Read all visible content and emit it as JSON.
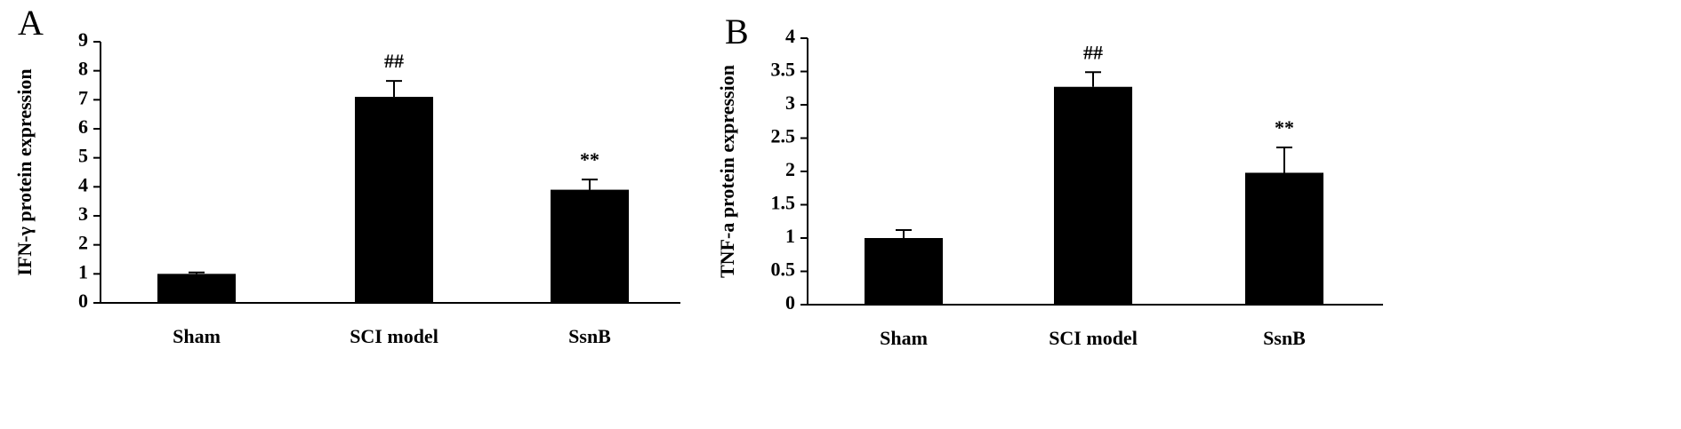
{
  "chart_data": [
    {
      "type": "bar",
      "panel": "A",
      "y_label": "IFN-γ protein expression",
      "categories": [
        "Sham",
        "SCI model",
        "SsnB"
      ],
      "values": [
        1.0,
        7.1,
        3.9
      ],
      "errors": [
        0.05,
        0.55,
        0.35
      ],
      "annotations": [
        null,
        "##",
        "**"
      ],
      "color": "#000000",
      "ylim": [
        0,
        9
      ],
      "yticks": [
        0,
        1,
        2,
        3,
        4,
        5,
        6,
        7,
        8,
        9
      ]
    },
    {
      "type": "bar",
      "panel": "B",
      "y_label": "TNF-a protein expression",
      "categories": [
        "Sham",
        "SCI model",
        "SsnB"
      ],
      "values": [
        1.0,
        3.27,
        1.98
      ],
      "errors": [
        0.12,
        0.22,
        0.38
      ],
      "annotations": [
        null,
        "##",
        "**"
      ],
      "color": "#000000",
      "ylim": [
        0,
        4
      ],
      "yticks": [
        0,
        0.5,
        1,
        1.5,
        2,
        2.5,
        3,
        3.5,
        4
      ]
    }
  ]
}
